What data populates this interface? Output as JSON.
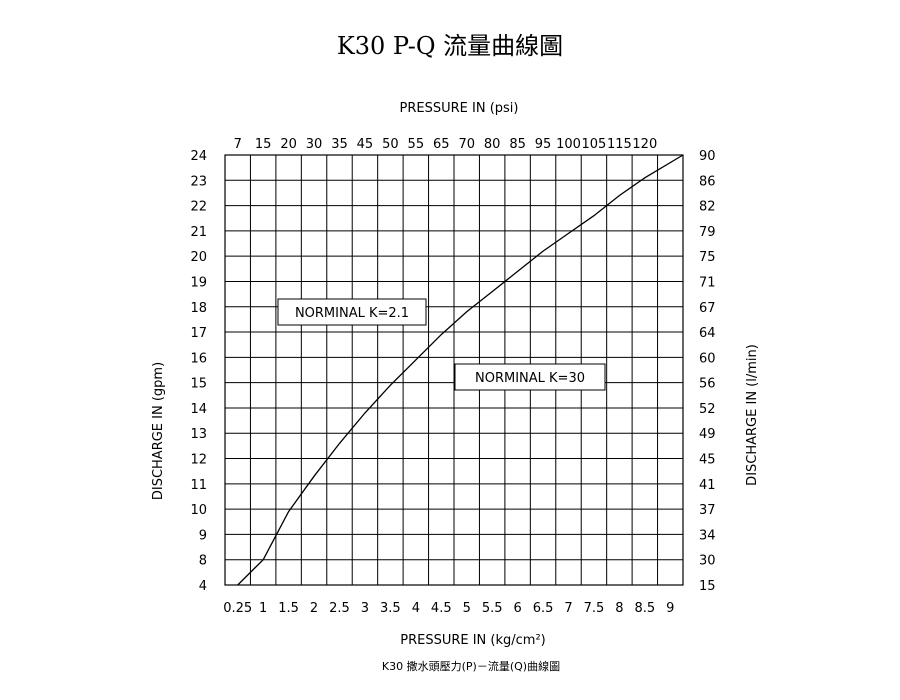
{
  "chart_data": {
    "type": "line",
    "title": "K30 P-Q 流量曲線圖",
    "caption": "K30 撒水頭壓力(P)－流量(Q)曲線圖",
    "xlabel_bottom": "PRESSURE IN (kg/cm²)",
    "xlabel_top": "PRESSURE IN (psi)",
    "ylabel_left": "DISCHARGE IN (gpm)",
    "ylabel_right": "DISCHARGE IN (l/min)",
    "x_ticks_bottom": [
      "0.25",
      "1",
      "1.5",
      "2",
      "2.5",
      "3",
      "3.5",
      "4",
      "4.5",
      "5",
      "5.5",
      "6",
      "6.5",
      "7",
      "7.5",
      "8",
      "8.5",
      "9"
    ],
    "x_ticks_top": [
      "7",
      "15",
      "20",
      "30",
      "35",
      "45",
      "50",
      "55",
      "65",
      "70",
      "80",
      "85",
      "95",
      "100",
      "105",
      "115",
      "120"
    ],
    "y_ticks_left": [
      "4",
      "8",
      "9",
      "10",
      "11",
      "12",
      "13",
      "14",
      "15",
      "16",
      "17",
      "18",
      "19",
      "20",
      "21",
      "22",
      "23",
      "24"
    ],
    "y_ticks_right": [
      "15",
      "30",
      "34",
      "37",
      "41",
      "45",
      "49",
      "52",
      "56",
      "60",
      "64",
      "67",
      "71",
      "75",
      "79",
      "82",
      "86",
      "90"
    ],
    "series": [
      {
        "x": [
          0.25,
          1,
          1.5,
          2,
          2.5,
          3,
          3.5,
          4,
          4.5,
          5,
          5.5,
          6,
          6.5,
          7,
          7.5,
          8,
          8.5,
          9
        ],
        "y": [
          4,
          8,
          9.9,
          11.3,
          12.6,
          13.8,
          14.9,
          15.9,
          16.9,
          17.8,
          18.6,
          19.4,
          20.2,
          20.9,
          21.6,
          22.4,
          23.1,
          24
        ]
      }
    ],
    "annotations": [
      "NORMINAL K=2.1",
      "NORMINAL K=30"
    ],
    "grid": true
  }
}
